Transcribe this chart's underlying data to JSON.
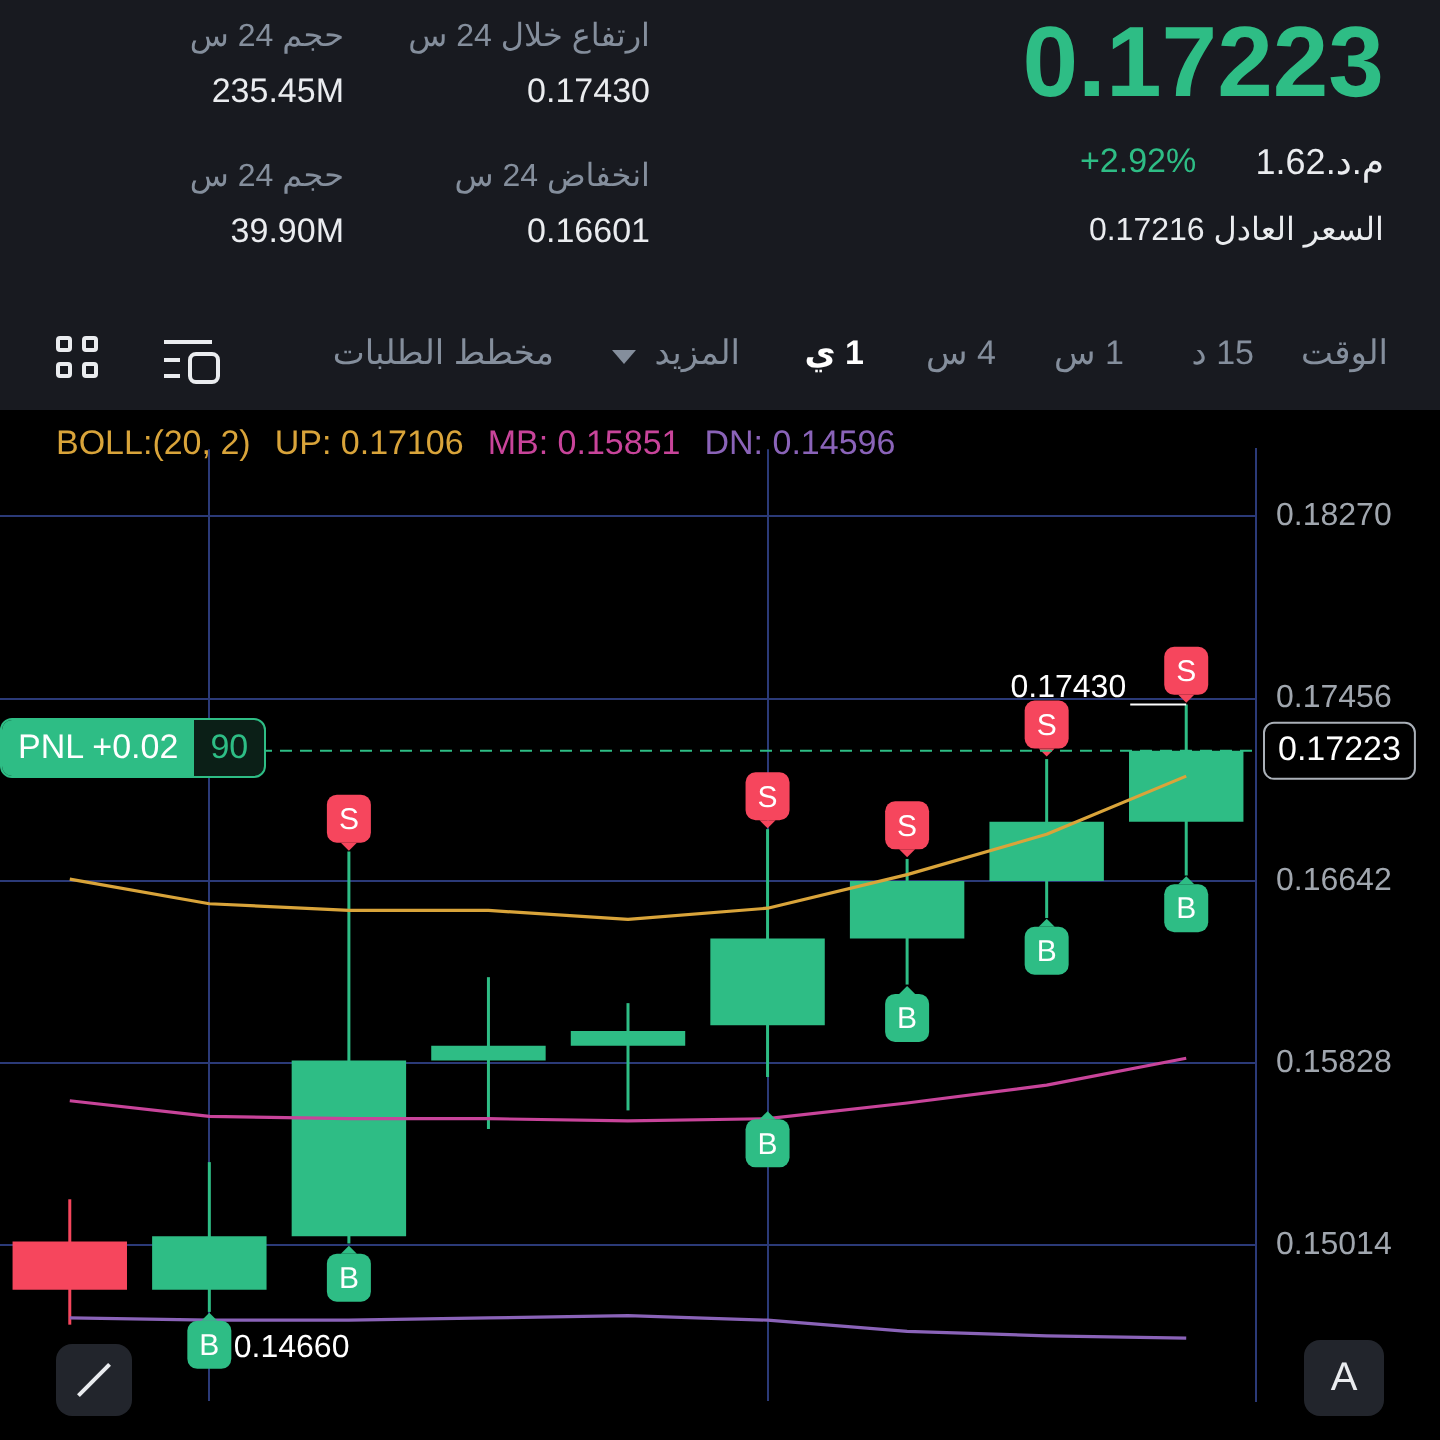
{
  "chart_data": {
    "type": "candlestick",
    "title": "0.17223",
    "legend_title": "BOLL:(20, 2)",
    "categories": [
      null,
      null,
      null,
      null,
      null,
      null,
      null,
      null,
      null
    ],
    "ohlc": [
      [
        0.15031,
        0.1522,
        0.1466,
        0.14816
      ],
      [
        0.14816,
        0.15386,
        0.14717,
        0.15055
      ],
      [
        0.15055,
        0.16773,
        0.15022,
        0.1584
      ],
      [
        0.1584,
        0.16212,
        0.15534,
        0.15906
      ],
      [
        0.15906,
        0.16096,
        0.15617,
        0.15972
      ],
      [
        0.15997,
        0.16873,
        0.15766,
        0.16385
      ],
      [
        0.16385,
        0.1674,
        0.16179,
        0.16641
      ],
      [
        0.16641,
        0.17186,
        0.16476,
        0.16906
      ],
      [
        0.16906,
        0.1743,
        0.16666,
        0.17223
      ]
    ],
    "series": [
      {
        "type": "line",
        "name": "UP: 0.17106",
        "color": "#d9a43a",
        "values": [
          0.1665,
          0.1654,
          0.1651,
          0.1651,
          0.1647,
          0.1652,
          0.1667,
          0.1685,
          0.1711
        ]
      },
      {
        "type": "line",
        "name": "MB: 0.15851",
        "color": "#c8449a",
        "values": [
          0.1566,
          0.1559,
          0.1558,
          0.1558,
          0.1557,
          0.1558,
          0.1565,
          0.1573,
          0.1585
        ]
      },
      {
        "type": "line",
        "name": "DN: 0.14596",
        "color": "#8a63b8",
        "values": [
          0.1469,
          0.1468,
          0.1468,
          0.1469,
          0.147,
          0.1468,
          0.1463,
          0.1461,
          0.146
        ]
      },
      {
        "type": "scatter",
        "name": "S",
        "color": "#f6465d",
        "values": [
          null,
          null,
          0.1692,
          null,
          null,
          0.1702,
          0.1689,
          0.1734,
          0.1758
        ]
      },
      {
        "type": "scatter",
        "name": "B",
        "color": "#2ebd85",
        "values": [
          null,
          0.1457,
          0.1487,
          null,
          null,
          0.1547,
          0.1603,
          0.1633,
          0.1652
        ]
      }
    ],
    "ylim": [
      0.1432,
      0.1857
    ],
    "yticks": [
      {
        "value": 0.1827,
        "label": "0.18270"
      },
      0.17456,
      0.16642,
      0.15828,
      0.15014
    ],
    "grid": true,
    "tick_labels": "y",
    "line_style": "solid",
    "ref_lines": [
      {
        "axis": "y",
        "value": 0.17223,
        "label": "0.17223",
        "color": "#2ebd85",
        "line_style": "dashed"
      }
    ],
    "annotations": [
      "ارتفاع خلال 24 س",
      "0.17430",
      "حجم 24 س",
      "235.45M",
      "انخفاض 24 س",
      "0.16601",
      "حجم 24 س",
      "39.90M",
      "+2.92%",
      "م.د.1.62",
      "السعر العادل 0.17216",
      "الوقت",
      "15 د",
      "1 س",
      "4 س",
      "1 ي",
      "المزيد",
      "مخطط الطلبات",
      "PNL +0.02",
      "90",
      "A",
      "0.17430",
      "0.14660"
    ]
  }
}
